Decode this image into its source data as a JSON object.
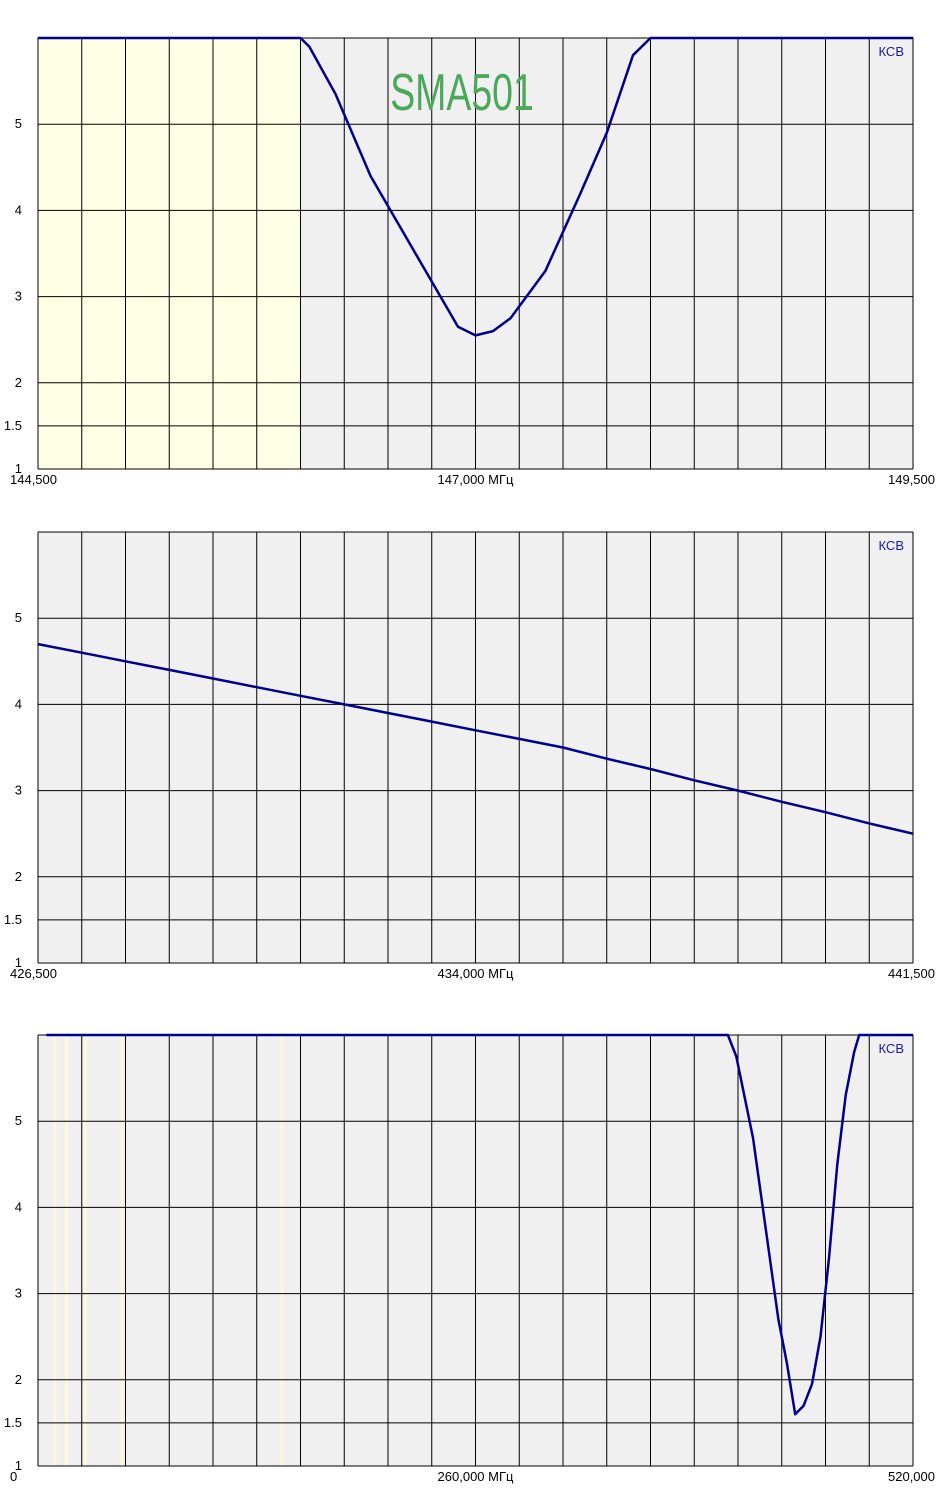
{
  "colors": {
    "plot_background": "#f0f0f0",
    "band_highlight": "#ffffe6",
    "grid": "#000000",
    "series_line": "#00008b",
    "series_label": "#1a1aa6",
    "watermark": "#4aa85a"
  },
  "chart_data": [
    {
      "type": "line",
      "watermark": "SMA501",
      "series_label": "КСВ",
      "x_ticks": [
        "144,500",
        "147,000 МГц",
        "149,500"
      ],
      "y_ticks": [
        "1",
        "1.5",
        "2",
        "3",
        "4",
        "5"
      ],
      "xlim": [
        144.5,
        149.5
      ],
      "ylim": [
        1,
        6
      ],
      "grid": true,
      "highlight_band": [
        144.5,
        146.0
      ],
      "series": [
        {
          "x": [
            144.5,
            146.0,
            146.05,
            146.2,
            146.4,
            146.6,
            146.8,
            146.9,
            147.0,
            147.1,
            147.2,
            147.4,
            147.6,
            147.75,
            147.9,
            148.0,
            148.05,
            149.5
          ],
          "y": [
            6.0,
            6.0,
            5.9,
            5.35,
            4.4,
            3.7,
            3.0,
            2.65,
            2.55,
            2.6,
            2.75,
            3.3,
            4.2,
            4.9,
            5.8,
            6.0,
            6.0,
            6.0
          ]
        }
      ]
    },
    {
      "type": "line",
      "series_label": "КСВ",
      "x_ticks": [
        "426,500",
        "434,000 МГц",
        "441,500"
      ],
      "y_ticks": [
        "1",
        "1.5",
        "2",
        "3",
        "4",
        "5"
      ],
      "xlim": [
        426.5,
        441.5
      ],
      "ylim": [
        1,
        6
      ],
      "grid": true,
      "series": [
        {
          "x": [
            426.5,
            427.25,
            428.0,
            428.75,
            429.5,
            430.25,
            431.0,
            431.75,
            432.5,
            433.25,
            434.0,
            434.75,
            435.5,
            436.25,
            437.0,
            437.75,
            438.5,
            439.25,
            440.0,
            440.75,
            441.5
          ],
          "y": [
            4.7,
            4.6,
            4.5,
            4.4,
            4.3,
            4.2,
            4.1,
            4.0,
            3.9,
            3.8,
            3.7,
            3.6,
            3.5,
            3.37,
            3.25,
            3.12,
            3.0,
            2.87,
            2.75,
            2.62,
            2.5
          ]
        }
      ]
    },
    {
      "type": "line",
      "series_label": "КСВ",
      "x_ticks": [
        "0",
        "260,000 МГц",
        "520,000"
      ],
      "y_ticks": [
        "1",
        "1.5",
        "2",
        "3",
        "4",
        "5"
      ],
      "xlim": [
        0,
        520
      ],
      "ylim": [
        1,
        6
      ],
      "grid": true,
      "highlight_lines": [
        10,
        17,
        28,
        50,
        145
      ],
      "series": [
        {
          "x": [
            5,
            410,
            415,
            425,
            440,
            445,
            450,
            455,
            460,
            465,
            470,
            475,
            480,
            485,
            488,
            520
          ],
          "y": [
            6.0,
            6.0,
            5.75,
            4.8,
            2.7,
            2.2,
            1.6,
            1.7,
            1.95,
            2.5,
            3.4,
            4.5,
            5.3,
            5.8,
            6.0,
            6.0
          ]
        }
      ]
    }
  ]
}
